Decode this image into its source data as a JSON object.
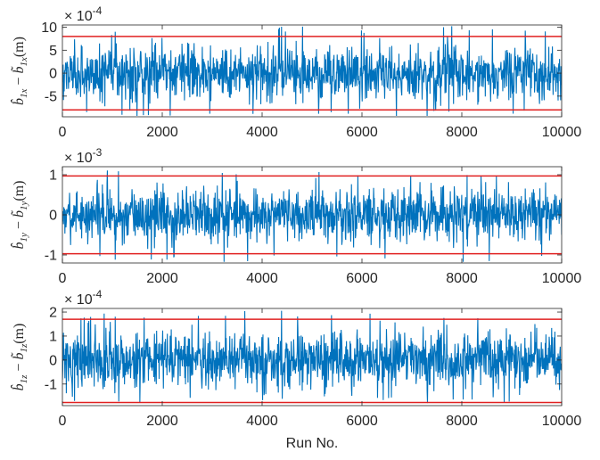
{
  "colors": {
    "series": "#0072BD",
    "bound": "#E02020",
    "axis": "#262626"
  },
  "chart_data": [
    {
      "type": "line",
      "title": "",
      "xlabel": "",
      "ylabel_base": "b",
      "ylabel_sub": "1x",
      "ylabel_unit": "(m)",
      "exponent_base": "× 10",
      "exponent_power": "-4",
      "xlim": [
        0,
        10000
      ],
      "ylim": [
        -9.5,
        10.5
      ],
      "xticks": [
        0,
        2000,
        4000,
        6000,
        8000,
        10000
      ],
      "xtick_labels": [
        "0",
        "2000",
        "4000",
        "6000",
        "8000",
        "10000"
      ],
      "yticks": [
        -5,
        0,
        5,
        10
      ],
      "ytick_labels": [
        "-5",
        "0",
        "5",
        "10"
      ],
      "bounds": [
        8,
        -8
      ],
      "series": [
        {
          "noise_std": 3.0,
          "spike_max": 10.3,
          "spike_min": -9.3
        }
      ]
    },
    {
      "type": "line",
      "title": "",
      "xlabel": "",
      "ylabel_base": "b",
      "ylabel_sub": "1y",
      "ylabel_unit": "(m)",
      "exponent_base": "× 10",
      "exponent_power": "-3",
      "xlim": [
        0,
        10000
      ],
      "ylim": [
        -1.2,
        1.2
      ],
      "xticks": [
        0,
        2000,
        4000,
        6000,
        8000,
        10000
      ],
      "xtick_labels": [
        "0",
        "2000",
        "4000",
        "6000",
        "8000",
        "10000"
      ],
      "yticks": [
        -1,
        0,
        1
      ],
      "ytick_labels": [
        "-1",
        "0",
        "1"
      ],
      "bounds": [
        0.97,
        -0.97
      ],
      "series": [
        {
          "noise_std": 0.33,
          "spike_max": 1.12,
          "spike_min": -1.18
        }
      ]
    },
    {
      "type": "line",
      "title": "",
      "xlabel": "Run No.",
      "ylabel_base": "b",
      "ylabel_sub": "1z",
      "ylabel_unit": "(m)",
      "exponent_base": "× 10",
      "exponent_power": "-4",
      "xlim": [
        0,
        10000
      ],
      "ylim": [
        -1.9,
        2.15
      ],
      "xticks": [
        0,
        2000,
        4000,
        6000,
        8000,
        10000
      ],
      "xtick_labels": [
        "0",
        "2000",
        "4000",
        "6000",
        "8000",
        "10000"
      ],
      "yticks": [
        -1,
        0,
        1,
        2
      ],
      "ytick_labels": [
        "-1",
        "0",
        "1",
        "2"
      ],
      "bounds": [
        1.7,
        -1.77
      ],
      "series": [
        {
          "noise_std": 0.6,
          "spike_max": 2.1,
          "spike_min": -1.8
        }
      ]
    }
  ]
}
